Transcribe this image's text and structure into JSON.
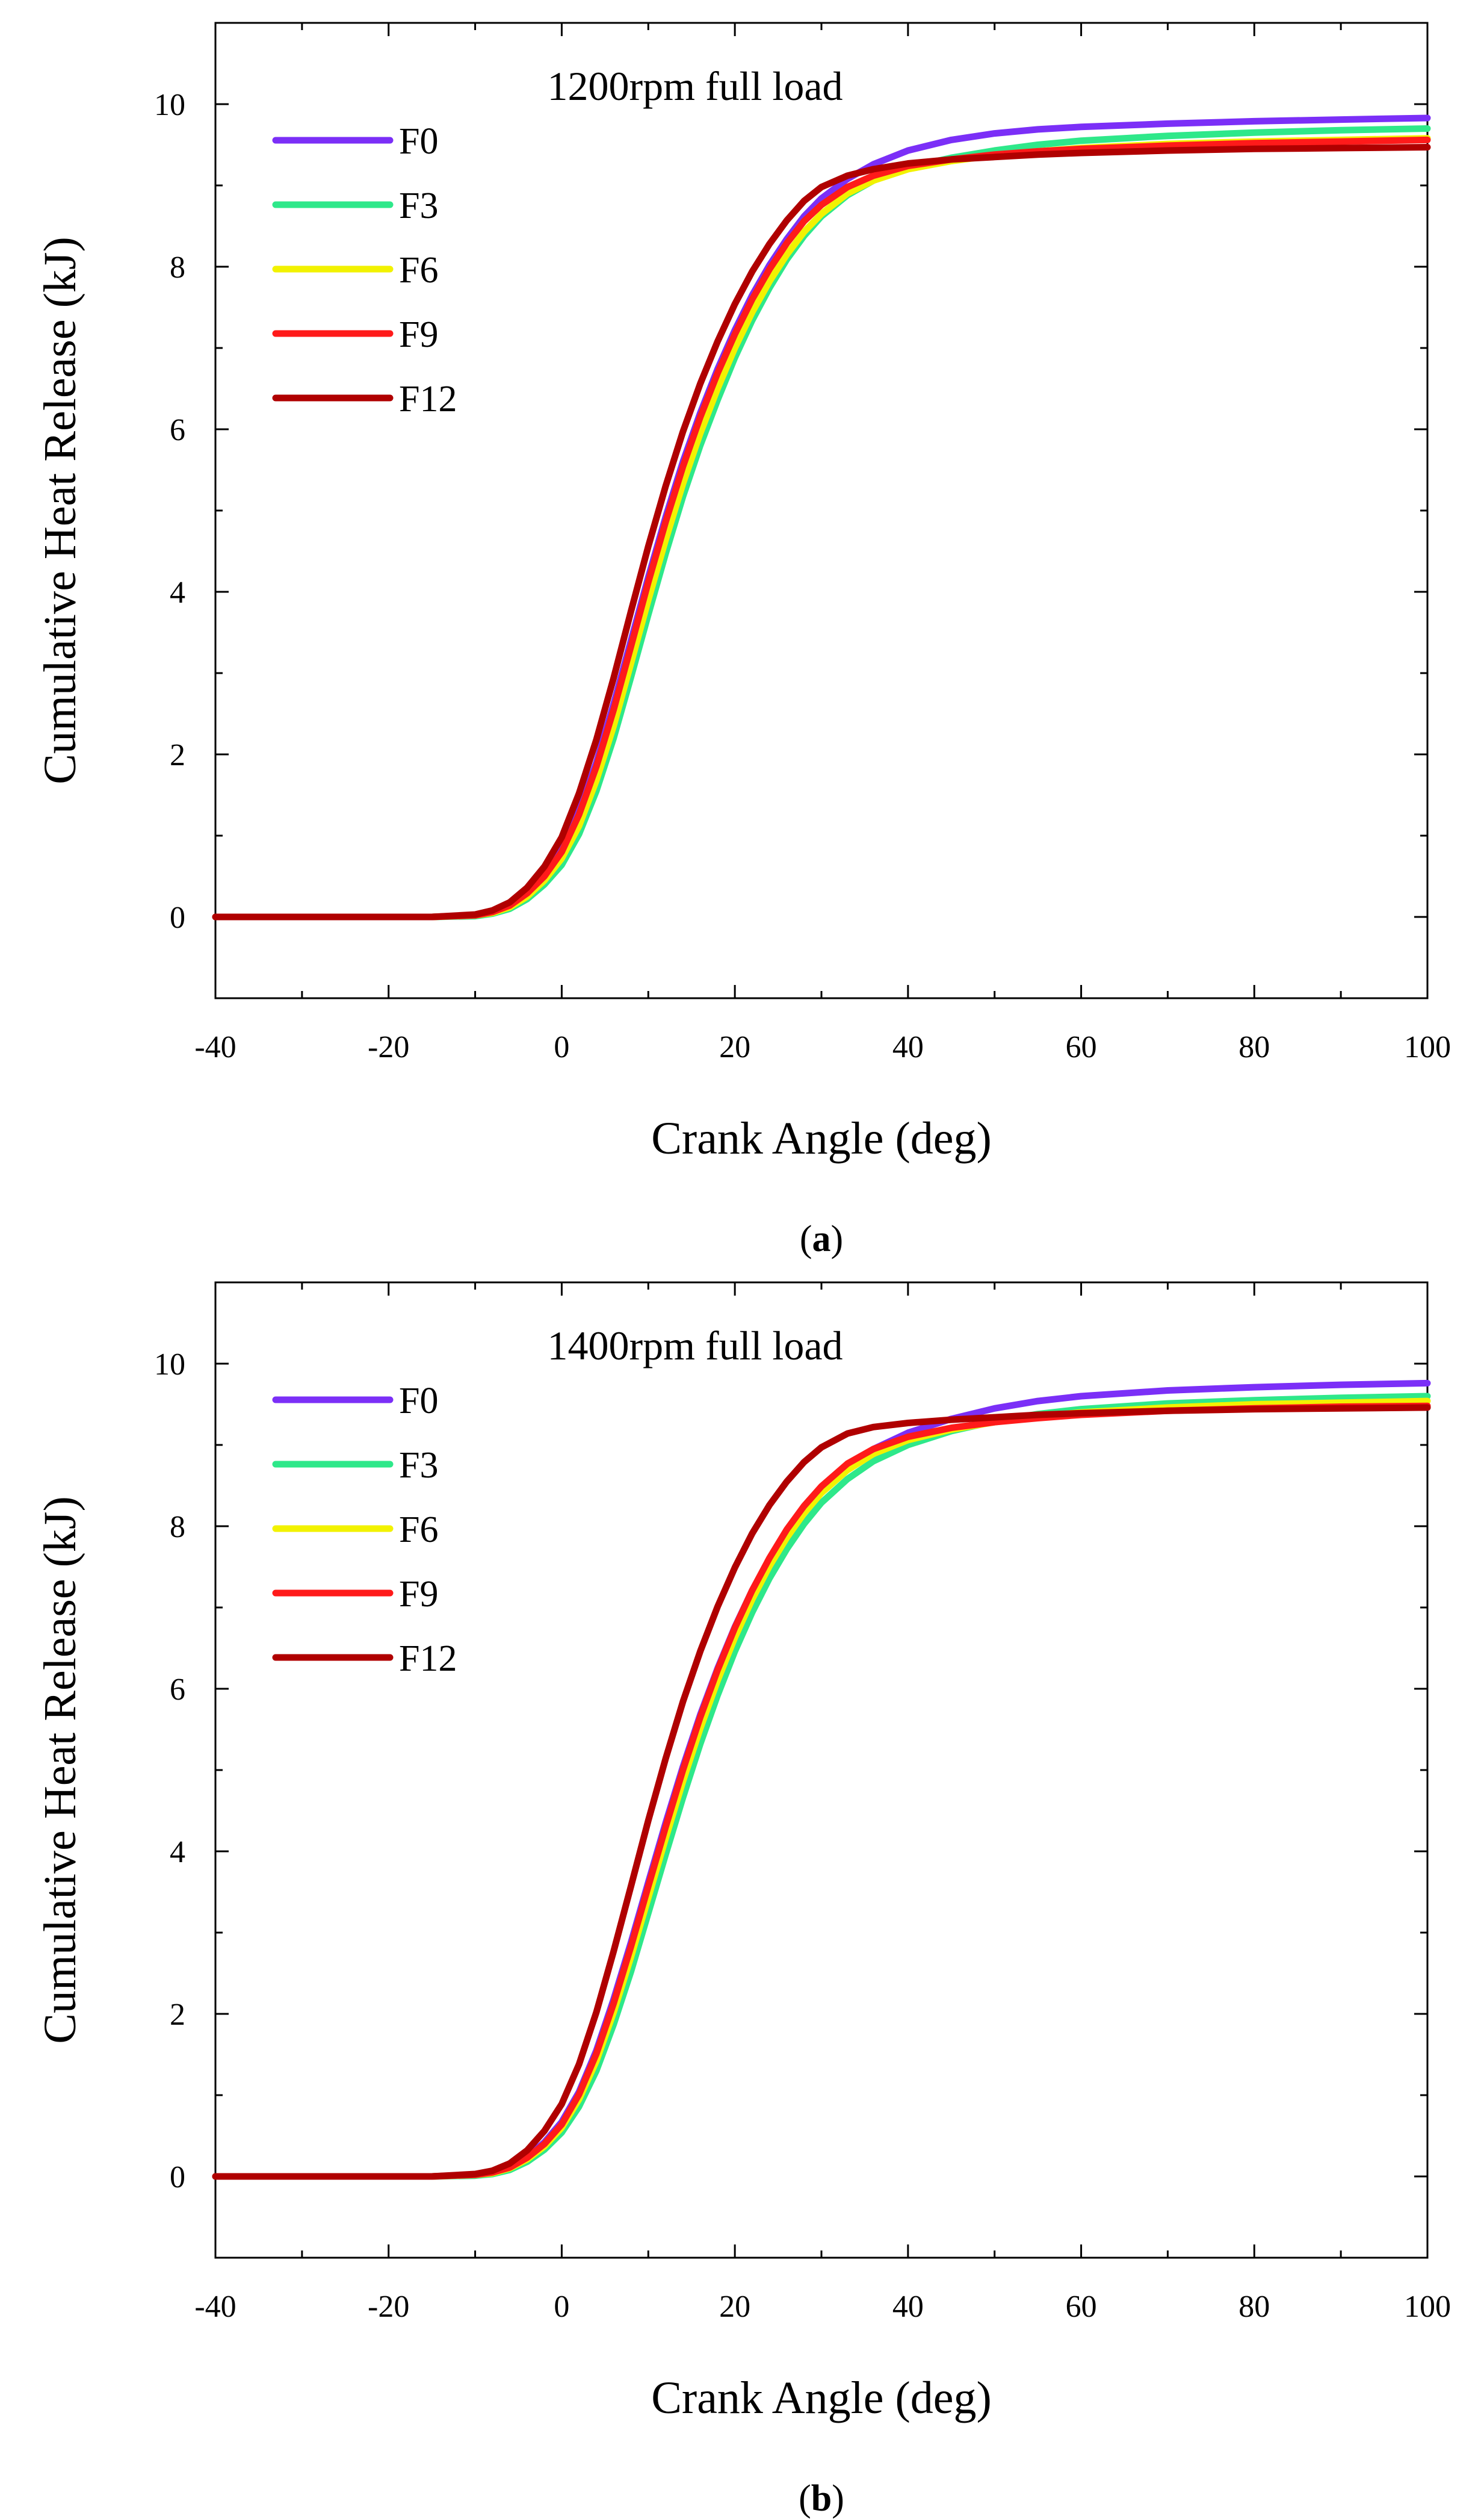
{
  "chart_data": [
    {
      "type": "line",
      "panel_label": "a",
      "annotation": "1200rpm full load",
      "xlabel": "Crank Angle (deg)",
      "ylabel": "Cumulative Heat Release (kJ)",
      "xlim": [
        -40,
        100
      ],
      "ylim": [
        -1,
        11
      ],
      "x_ticks": [
        -40,
        -20,
        0,
        20,
        40,
        60,
        80,
        100
      ],
      "y_ticks": [
        0,
        2,
        4,
        6,
        8,
        10
      ],
      "legend": "top-left",
      "x": [
        -40,
        -30,
        -20,
        -15,
        -10,
        -8,
        -6,
        -4,
        -2,
        0,
        2,
        4,
        6,
        8,
        10,
        12,
        14,
        16,
        18,
        20,
        22,
        24,
        26,
        28,
        30,
        33,
        36,
        40,
        45,
        50,
        55,
        60,
        70,
        80,
        90,
        100
      ],
      "series": [
        {
          "name": "F0",
          "color": "#7b2ff7",
          "values": [
            0,
            0,
            0,
            0,
            0.02,
            0.06,
            0.15,
            0.3,
            0.52,
            0.82,
            1.3,
            1.9,
            2.62,
            3.4,
            4.18,
            4.92,
            5.6,
            6.2,
            6.74,
            7.22,
            7.65,
            8.02,
            8.34,
            8.62,
            8.84,
            9.08,
            9.26,
            9.43,
            9.56,
            9.64,
            9.69,
            9.72,
            9.76,
            9.79,
            9.81,
            9.83
          ]
        },
        {
          "name": "F3",
          "color": "#2ee88a",
          "values": [
            0,
            0,
            0,
            0,
            0.01,
            0.04,
            0.1,
            0.22,
            0.4,
            0.64,
            1.02,
            1.55,
            2.2,
            2.95,
            3.72,
            4.47,
            5.17,
            5.8,
            6.36,
            6.88,
            7.34,
            7.74,
            8.09,
            8.38,
            8.62,
            8.88,
            9.06,
            9.22,
            9.34,
            9.43,
            9.5,
            9.55,
            9.61,
            9.65,
            9.68,
            9.7
          ]
        },
        {
          "name": "F6",
          "color": "#f2f200",
          "values": [
            0,
            0,
            0,
            0,
            0.02,
            0.05,
            0.12,
            0.25,
            0.45,
            0.72,
            1.12,
            1.68,
            2.35,
            3.12,
            3.9,
            4.64,
            5.33,
            5.95,
            6.5,
            7.0,
            7.44,
            7.82,
            8.15,
            8.43,
            8.65,
            8.9,
            9.06,
            9.2,
            9.3,
            9.37,
            9.42,
            9.46,
            9.51,
            9.54,
            9.56,
            9.58
          ]
        },
        {
          "name": "F9",
          "color": "#ff1a1a",
          "values": [
            0,
            0,
            0,
            0,
            0.02,
            0.06,
            0.14,
            0.29,
            0.5,
            0.8,
            1.26,
            1.85,
            2.55,
            3.33,
            4.12,
            4.86,
            5.54,
            6.15,
            6.69,
            7.17,
            7.6,
            7.97,
            8.29,
            8.56,
            8.76,
            8.98,
            9.12,
            9.24,
            9.32,
            9.38,
            9.42,
            9.45,
            9.49,
            9.52,
            9.54,
            9.56
          ]
        },
        {
          "name": "F12",
          "color": "#b00000",
          "values": [
            0,
            0,
            0,
            0,
            0.03,
            0.08,
            0.18,
            0.36,
            0.62,
            0.98,
            1.52,
            2.18,
            2.94,
            3.76,
            4.56,
            5.3,
            5.97,
            6.56,
            7.08,
            7.54,
            7.94,
            8.28,
            8.57,
            8.81,
            8.98,
            9.12,
            9.2,
            9.27,
            9.32,
            9.35,
            9.38,
            9.4,
            9.43,
            9.45,
            9.46,
            9.47
          ]
        }
      ]
    },
    {
      "type": "line",
      "panel_label": "b",
      "annotation": "1400rpm full load",
      "xlabel": "Crank Angle (deg)",
      "ylabel": "Cumulative Heat Release (kJ)",
      "xlim": [
        -40,
        100
      ],
      "ylim": [
        -1,
        11
      ],
      "x_ticks": [
        -40,
        -20,
        0,
        20,
        40,
        60,
        80,
        100
      ],
      "y_ticks": [
        0,
        2,
        4,
        6,
        8,
        10
      ],
      "legend": "top-left",
      "x": [
        -40,
        -30,
        -20,
        -15,
        -10,
        -8,
        -6,
        -4,
        -2,
        0,
        2,
        4,
        6,
        8,
        10,
        12,
        14,
        16,
        18,
        20,
        22,
        24,
        26,
        28,
        30,
        33,
        36,
        40,
        45,
        50,
        55,
        60,
        70,
        80,
        90,
        100
      ],
      "series": [
        {
          "name": "F0",
          "color": "#7b2ff7",
          "values": [
            0,
            0,
            0,
            0,
            0.02,
            0.05,
            0.12,
            0.24,
            0.42,
            0.67,
            1.04,
            1.55,
            2.18,
            2.88,
            3.62,
            4.35,
            5.04,
            5.68,
            6.25,
            6.76,
            7.21,
            7.6,
            7.94,
            8.22,
            8.46,
            8.74,
            8.95,
            9.15,
            9.32,
            9.45,
            9.54,
            9.6,
            9.67,
            9.71,
            9.74,
            9.76
          ]
        },
        {
          "name": "F3",
          "color": "#2ee88a",
          "values": [
            0,
            0,
            0,
            0,
            0.01,
            0.03,
            0.08,
            0.18,
            0.33,
            0.54,
            0.86,
            1.3,
            1.87,
            2.52,
            3.24,
            3.96,
            4.66,
            5.32,
            5.92,
            6.46,
            6.94,
            7.36,
            7.72,
            8.03,
            8.29,
            8.58,
            8.8,
            9.0,
            9.17,
            9.29,
            9.38,
            9.44,
            9.51,
            9.55,
            9.58,
            9.6
          ]
        },
        {
          "name": "F6",
          "color": "#f2f200",
          "values": [
            0,
            0,
            0,
            0,
            0.02,
            0.04,
            0.1,
            0.21,
            0.37,
            0.6,
            0.95,
            1.42,
            2.02,
            2.7,
            3.43,
            4.16,
            4.86,
            5.51,
            6.1,
            6.63,
            7.1,
            7.51,
            7.86,
            8.16,
            8.41,
            8.69,
            8.89,
            9.06,
            9.19,
            9.28,
            9.35,
            9.4,
            9.46,
            9.5,
            9.52,
            9.54
          ]
        },
        {
          "name": "F9",
          "color": "#ff1a1a",
          "values": [
            0,
            0,
            0,
            0,
            0.02,
            0.05,
            0.11,
            0.23,
            0.4,
            0.64,
            1.01,
            1.51,
            2.13,
            2.83,
            3.57,
            4.3,
            5.0,
            5.65,
            6.23,
            6.75,
            7.21,
            7.61,
            7.96,
            8.25,
            8.49,
            8.77,
            8.95,
            9.1,
            9.21,
            9.28,
            9.33,
            9.37,
            9.42,
            9.45,
            9.47,
            9.48
          ]
        },
        {
          "name": "F12",
          "color": "#b00000",
          "values": [
            0,
            0,
            0,
            0,
            0.03,
            0.07,
            0.16,
            0.32,
            0.56,
            0.89,
            1.38,
            2.02,
            2.77,
            3.57,
            4.38,
            5.14,
            5.84,
            6.46,
            7.01,
            7.49,
            7.91,
            8.26,
            8.55,
            8.79,
            8.97,
            9.14,
            9.22,
            9.27,
            9.31,
            9.34,
            9.37,
            9.39,
            9.42,
            9.44,
            9.45,
            9.46
          ]
        }
      ]
    }
  ]
}
